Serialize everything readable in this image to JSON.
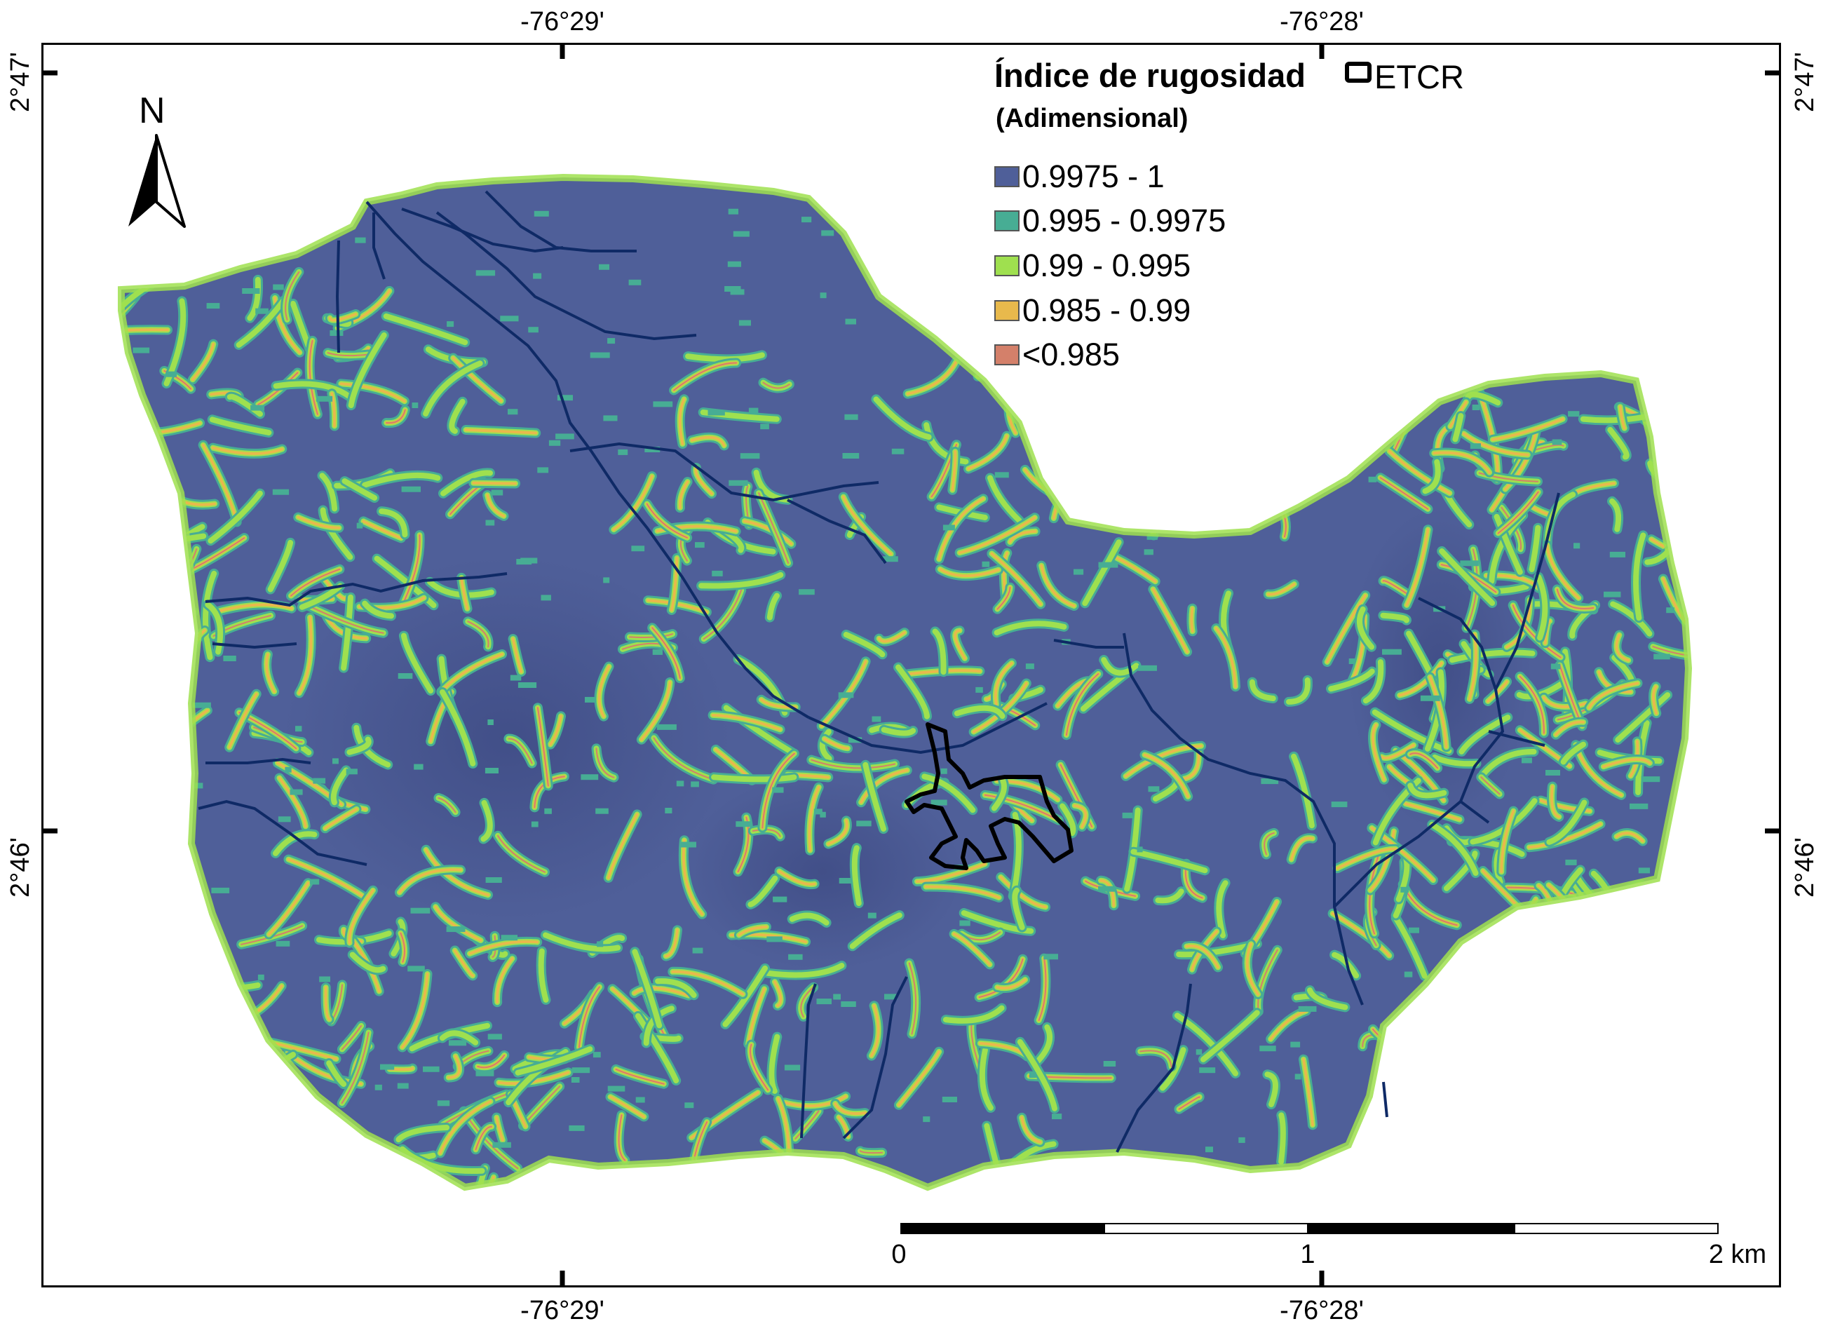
{
  "map": {
    "coordinates": {
      "top": [
        "-76°29'",
        "-76°28'"
      ],
      "bottom": [
        "-76°29'",
        "-76°28'"
      ],
      "left": [
        "2°47'",
        "2°46'"
      ],
      "right": [
        "2°47'",
        "2°46'"
      ]
    },
    "north_arrow": {
      "label": "N",
      "icon": "north-arrow-icon"
    },
    "scale_bar": {
      "labels": [
        "0",
        "1",
        "2 km"
      ]
    }
  },
  "legend": {
    "title": "Índice de rugosidad",
    "subtitle": "(Adimensional)",
    "etcr_label": "ETCR",
    "classes": [
      {
        "label": "0.9975 - 1",
        "color": "#4f5f99"
      },
      {
        "label": "0.995 - 0.9975",
        "color": "#47ad94"
      },
      {
        "label": "0.99 - 0.995",
        "color": "#9fe04f"
      },
      {
        "label": "0.985 - 0.99",
        "color": "#e8b94c"
      },
      {
        "label": "<0.985",
        "color": "#d4806a"
      }
    ]
  },
  "colors": {
    "basin_base": "#4f5f99",
    "basin_dark": "#3f4c85",
    "rivers": "#0f2a66",
    "etcr_outline": "#000000"
  }
}
